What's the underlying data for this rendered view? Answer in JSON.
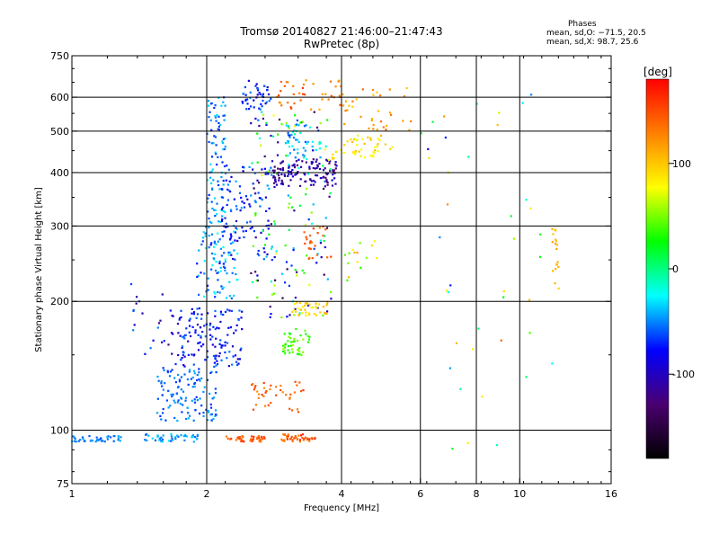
{
  "title_line1": "Tromsø 20140827 21:46:00–21:47:43",
  "title_line2": "RwPretec (8p)",
  "phases": {
    "heading": "Phases",
    "line_o": "mean, sd,O: −71.5, 20.5",
    "line_x": "mean, sd,X:  98.7, 25.6"
  },
  "chart_data": {
    "type": "scatter",
    "xlabel": "Frequency [MHz]",
    "ylabel": "Stationary phase Virtual Height [km]",
    "x_scale": "log",
    "y_scale": "log",
    "xlim": [
      1,
      16
    ],
    "ylim": [
      75,
      750
    ],
    "x_ticks": [
      1,
      2,
      4,
      6,
      8,
      10,
      16
    ],
    "y_ticks": [
      75,
      100,
      200,
      300,
      400,
      500,
      600,
      750
    ],
    "colorbar": {
      "label": "[deg]",
      "range": [
        -180,
        180
      ],
      "ticks": [
        100,
        0,
        -100
      ],
      "colors": [
        "#000000",
        "#4a0070",
        "#0000ff",
        "#00ffff",
        "#00ff00",
        "#ffff00",
        "#ff8000",
        "#ff0000"
      ]
    },
    "grid": true,
    "series": [
      {
        "clusters": [
          {
            "f": [
              1.0,
              1.3
            ],
            "h": [
              94,
              97
            ],
            "ph": [
              -60,
              -40
            ],
            "n": 40
          },
          {
            "f": [
              1.45,
              1.95
            ],
            "h": [
              94,
              98
            ],
            "ph": [
              -60,
              -30
            ],
            "n": 45
          },
          {
            "f": [
              1.55,
              2.1
            ],
            "h": [
              105,
              140
            ],
            "ph": [
              -70,
              -40
            ],
            "n": 120
          },
          {
            "f": [
              1.7,
              2.4
            ],
            "h": [
              140,
              195
            ],
            "ph": [
              -110,
              -50
            ],
            "n": 140
          },
          {
            "f": [
              1.9,
              2.35
            ],
            "h": [
              200,
              300
            ],
            "ph": [
              -80,
              -20
            ],
            "n": 90
          },
          {
            "f": [
              2.0,
              2.2
            ],
            "h": [
              300,
              600
            ],
            "ph": [
              -70,
              -30
            ],
            "n": 90
          },
          {
            "f": [
              2.15,
              2.8
            ],
            "h": [
              250,
              420
            ],
            "ph": [
              -100,
              -40
            ],
            "n": 110
          },
          {
            "f": [
              2.4,
              2.8
            ],
            "h": [
              560,
              660
            ],
            "ph": [
              -100,
              -50
            ],
            "n": 45
          },
          {
            "f": [
              2.8,
              3.9
            ],
            "h": [
              370,
              430
            ],
            "ph": [
              -130,
              -90
            ],
            "n": 120
          },
          {
            "f": [
              3.0,
              3.6
            ],
            "h": [
              430,
              520
            ],
            "ph": [
              -60,
              -10
            ],
            "n": 50
          },
          {
            "f": [
              2.5,
              3.8
            ],
            "h": [
              180,
              560
            ],
            "ph": [
              -150,
              80
            ],
            "n": 160
          },
          {
            "f": [
              1.3,
              1.7
            ],
            "h": [
              150,
              240
            ],
            "ph": [
              -120,
              -40
            ],
            "n": 25
          }
        ]
      },
      {
        "clusters": [
          {
            "f": [
              2.2,
              2.7
            ],
            "h": [
              94,
              97
            ],
            "ph": [
              130,
              160
            ],
            "n": 40
          },
          {
            "f": [
              2.9,
              3.5
            ],
            "h": [
              94,
              98
            ],
            "ph": [
              120,
              170
            ],
            "n": 40
          },
          {
            "f": [
              2.5,
              3.3
            ],
            "h": [
              110,
              130
            ],
            "ph": [
              120,
              160
            ],
            "n": 40
          },
          {
            "f": [
              2.95,
              3.4
            ],
            "h": [
              150,
              175
            ],
            "ph": [
              20,
              60
            ],
            "n": 45
          },
          {
            "f": [
              3.1,
              3.75
            ],
            "h": [
              185,
              200
            ],
            "ph": [
              80,
              110
            ],
            "n": 40
          },
          {
            "f": [
              3.3,
              3.8
            ],
            "h": [
              250,
              300
            ],
            "ph": [
              130,
              160
            ],
            "n": 25
          },
          {
            "f": [
              3.8,
              5.2
            ],
            "h": [
              430,
              490
            ],
            "ph": [
              70,
              110
            ],
            "n": 50
          },
          {
            "f": [
              4.0,
              5.8
            ],
            "h": [
              500,
              640
            ],
            "ph": [
              90,
              140
            ],
            "n": 35
          },
          {
            "f": [
              2.8,
              4.0
            ],
            "h": [
              560,
              660
            ],
            "ph": [
              110,
              160
            ],
            "n": 40
          },
          {
            "f": [
              4.0,
              5.0
            ],
            "h": [
              220,
              280
            ],
            "ph": [
              30,
              120
            ],
            "n": 15
          },
          {
            "f": [
              6.0,
              12.0
            ],
            "h": [
              90,
              650
            ],
            "ph": [
              -100,
              140
            ],
            "n": 40
          },
          {
            "f": [
              11.8,
              12.3
            ],
            "h": [
              210,
              300
            ],
            "ph": [
              90,
              120
            ],
            "n": 18
          }
        ]
      }
    ]
  }
}
